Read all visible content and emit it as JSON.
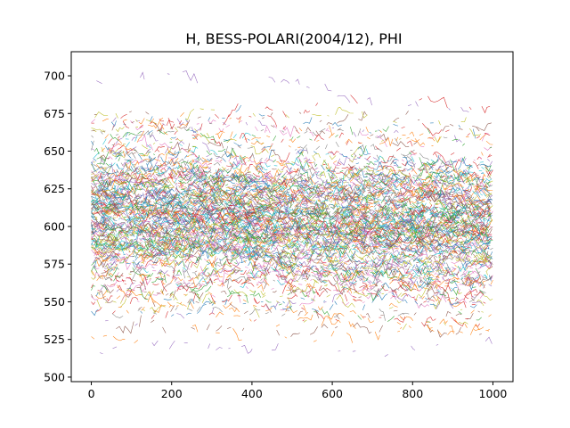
{
  "chart_data": {
    "type": "line",
    "title": "H, BESS-POLARI(2004/12), PHI",
    "xlabel": "",
    "ylabel": "",
    "xlim": [
      -50,
      1050
    ],
    "ylim": [
      497,
      716
    ],
    "x_ticks": [
      0,
      200,
      400,
      600,
      800,
      1000
    ],
    "y_ticks": [
      500,
      525,
      550,
      575,
      600,
      625,
      650,
      675,
      700
    ],
    "grid": false,
    "legend": "none",
    "x_range": [
      0,
      1000
    ],
    "n_series": 500,
    "series_level_center": 608,
    "series_level_spread": 28,
    "level_trend": [
      {
        "x": 0,
        "y": 612
      },
      {
        "x": 250,
        "y": 612
      },
      {
        "x": 500,
        "y": 608
      },
      {
        "x": 750,
        "y": 605
      },
      {
        "x": 1000,
        "y": 604
      }
    ],
    "y_observed_range": [
      507,
      705
    ],
    "colors": [
      "#1f77b4",
      "#ff7f0e",
      "#2ca02c",
      "#d62728",
      "#9467bd",
      "#8c564b",
      "#e377c2",
      "#7f7f7f",
      "#bcbd22",
      "#17becf"
    ]
  }
}
